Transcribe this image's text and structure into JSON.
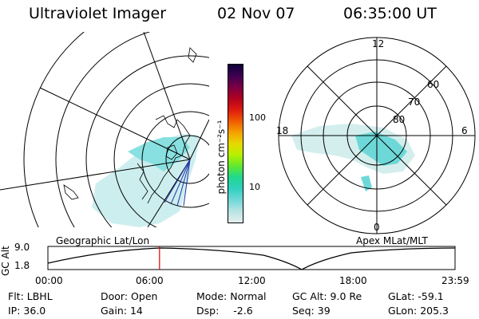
{
  "header": {
    "instrument": "Ultraviolet Imager",
    "date": "02 Nov 07",
    "time": "06:35:00 UT"
  },
  "left_map": {
    "caption": "Geographic Lat/Lon"
  },
  "right_map": {
    "caption": "Apex MLat/MLT",
    "mlt_labels": {
      "top": "12",
      "bottom": "0",
      "left": "18",
      "right": "6"
    },
    "lat_labels": [
      "60",
      "70",
      "80"
    ]
  },
  "colorbar": {
    "label": "photon cm⁻²s⁻¹",
    "ticks": [
      "100",
      "10"
    ],
    "scale": "log",
    "colors": [
      "#11003a",
      "#3d0050",
      "#7a0044",
      "#b00020",
      "#dd1a10",
      "#f05a00",
      "#f5a000",
      "#e8d800",
      "#b8f000",
      "#60e830",
      "#20d890",
      "#30d0c0",
      "#70d8d8",
      "#b8e4e4",
      "#e6eeee"
    ]
  },
  "timeline": {
    "ylabel": "GC Alt",
    "yticks": [
      "9.0",
      "1.8"
    ],
    "xticks": [
      "00:00",
      "06:00",
      "12:00",
      "18:00",
      "23:59"
    ],
    "current_time_hours": 6.58
  },
  "info": {
    "filter_label": "Flt:",
    "filter_value": "LBHL",
    "ip_label": "IP:",
    "ip_value": "36.0",
    "door_label": "Door:",
    "door_value": "Open",
    "gain_label": "Gain:",
    "gain_value": "14",
    "mode_label": "Mode:",
    "mode_value": "Normal",
    "dsp_label": "Dsp:",
    "dsp_value": "-2.6",
    "gcalt_label": "GC Alt:",
    "gcalt_value": "9.0 Re",
    "seq_label": "Seq:",
    "seq_value": "39",
    "glat_label": "GLat:",
    "glat_value": "-59.1",
    "glon_label": "GLon:",
    "glon_value": "205.3"
  },
  "colors": {
    "aurora_cyan": "#30d8d8",
    "aurora_pale": "#c8ecec",
    "time_marker": "#dd0000"
  }
}
